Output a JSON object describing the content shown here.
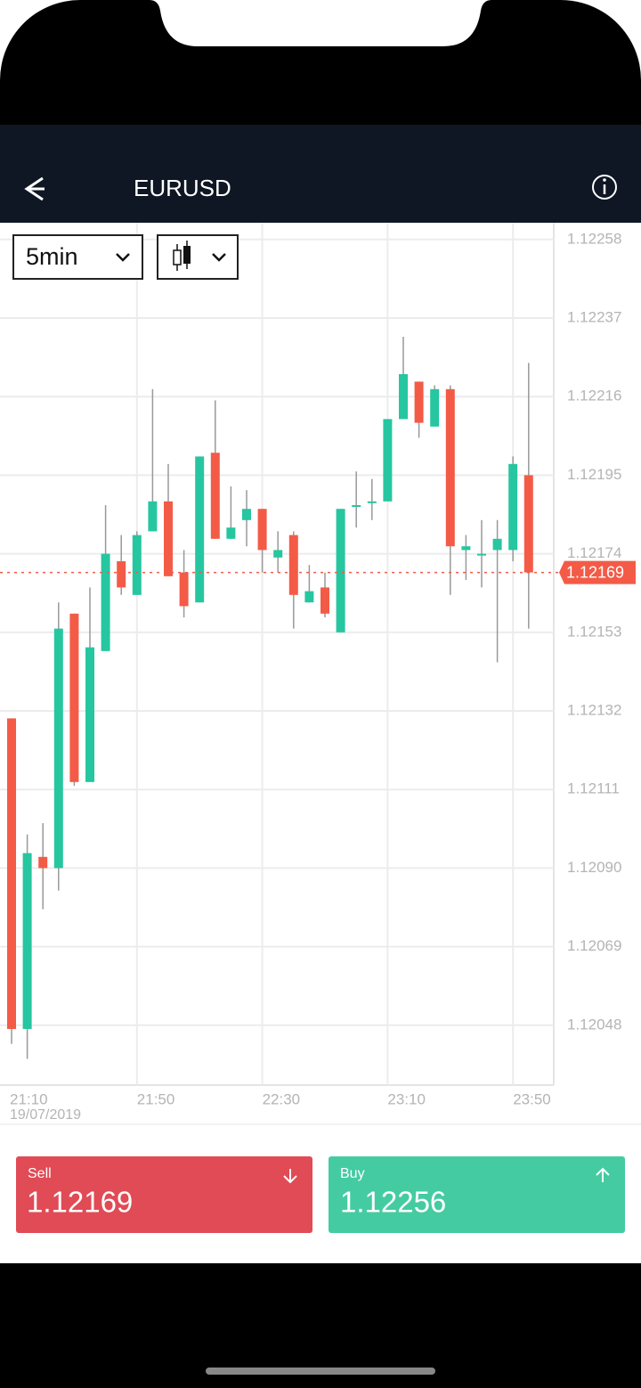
{
  "header": {
    "title": "EURUSD"
  },
  "controls": {
    "interval": "5min"
  },
  "chart_data": {
    "type": "candlestick",
    "categories": [
      "21:10",
      null,
      null,
      null,
      null,
      null,
      null,
      null,
      "21:50",
      null,
      null,
      null,
      null,
      null,
      null,
      null,
      "22:30",
      null,
      null,
      null,
      null,
      null,
      null,
      null,
      "23:10",
      null,
      null,
      null,
      null,
      null,
      null,
      null,
      "23:50",
      null
    ],
    "date_label": "19/07/2019",
    "open": [
      1.1213,
      1.12047,
      1.12093,
      1.1209,
      1.12158,
      1.12113,
      1.12148,
      1.12172,
      1.12163,
      1.1218,
      1.12188,
      1.12169,
      1.12161,
      1.12201,
      1.12178,
      1.12183,
      1.12186,
      1.12173,
      1.12179,
      1.12161,
      1.12165,
      1.12153,
      1.12187,
      1.12188,
      1.12188,
      1.1221,
      1.1222,
      1.12208,
      1.12218,
      1.12175,
      1.12174,
      1.12175,
      1.12175,
      1.12195
    ],
    "high": [
      1.1213,
      1.12099,
      1.12102,
      1.12161,
      1.12158,
      1.12165,
      1.12187,
      1.12179,
      1.1218,
      1.12218,
      1.12198,
      1.12175,
      1.122,
      1.12215,
      1.12192,
      1.12191,
      1.12186,
      1.1218,
      1.1218,
      1.12171,
      1.12169,
      1.12186,
      1.12196,
      1.12194,
      1.1221,
      1.12232,
      1.1222,
      1.12219,
      1.12219,
      1.12179,
      1.12183,
      1.12183,
      1.122,
      1.12225
    ],
    "low": [
      1.12043,
      1.12039,
      1.12079,
      1.12084,
      1.12112,
      1.12113,
      1.12148,
      1.12163,
      1.12163,
      1.1218,
      1.12168,
      1.12157,
      1.12161,
      1.12178,
      1.12178,
      1.12176,
      1.12169,
      1.12169,
      1.12154,
      1.12161,
      1.12157,
      1.12153,
      1.12181,
      1.12183,
      1.12188,
      1.1221,
      1.12205,
      1.12208,
      1.12163,
      1.12167,
      1.12165,
      1.12145,
      1.12172,
      1.12154
    ],
    "close": [
      1.12047,
      1.12094,
      1.1209,
      1.12154,
      1.12113,
      1.12149,
      1.12174,
      1.12165,
      1.12179,
      1.12188,
      1.12168,
      1.1216,
      1.122,
      1.12178,
      1.12181,
      1.12186,
      1.12175,
      1.12175,
      1.12163,
      1.12164,
      1.12158,
      1.12186,
      1.12187,
      1.12188,
      1.1221,
      1.12222,
      1.12209,
      1.12218,
      1.12176,
      1.12176,
      1.12174,
      1.12178,
      1.12198,
      1.12169
    ],
    "up_color": "#26c6a0",
    "down_color": "#f35b47",
    "ylim": [
      1.12032,
      1.12262
    ],
    "yticks": [
      {
        "value": 1.12048,
        "label": "1.12048"
      },
      {
        "value": 1.12069,
        "label": "1.12069"
      },
      {
        "value": 1.1209,
        "label": "1.12090"
      },
      {
        "value": 1.12111,
        "label": "1.12111"
      },
      {
        "value": 1.12132,
        "label": "1.12132"
      },
      {
        "value": 1.12153,
        "label": "1.12153"
      },
      {
        "value": 1.12174,
        "label": "1.12174"
      },
      {
        "value": 1.12195,
        "label": "1.12195"
      },
      {
        "value": 1.12216,
        "label": "1.12216"
      },
      {
        "value": 1.12237,
        "label": "1.12237"
      },
      {
        "value": 1.12258,
        "label": "1.12258"
      }
    ],
    "grid": true,
    "last_price": 1.12169
  },
  "trade": {
    "sell": {
      "label": "Sell",
      "price": 1.12169
    },
    "buy": {
      "label": "Buy",
      "price": 1.12256
    }
  }
}
